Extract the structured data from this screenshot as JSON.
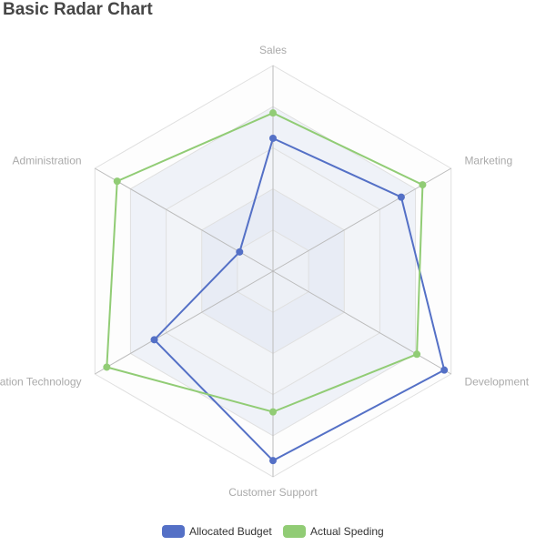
{
  "chart_data": {
    "type": "radar",
    "title": "Basic Radar Chart",
    "indicators": [
      {
        "name": "Sales",
        "max": 6500
      },
      {
        "name": "Administration",
        "max": 16000
      },
      {
        "name": "Information Technology",
        "max": 30000
      },
      {
        "name": "Customer Support",
        "max": 38000
      },
      {
        "name": "Development",
        "max": 52000
      },
      {
        "name": "Marketing",
        "max": 25000
      }
    ],
    "series": [
      {
        "name": "Allocated Budget",
        "color": "#5470c6",
        "values": [
          4200,
          3000,
          20000,
          35000,
          50000,
          18000
        ]
      },
      {
        "name": "Actual Speding",
        "color": "#91cc75",
        "values": [
          5000,
          14000,
          28000,
          26000,
          42000,
          21000
        ]
      }
    ],
    "split_number": 5,
    "legend_position": "bottom"
  }
}
